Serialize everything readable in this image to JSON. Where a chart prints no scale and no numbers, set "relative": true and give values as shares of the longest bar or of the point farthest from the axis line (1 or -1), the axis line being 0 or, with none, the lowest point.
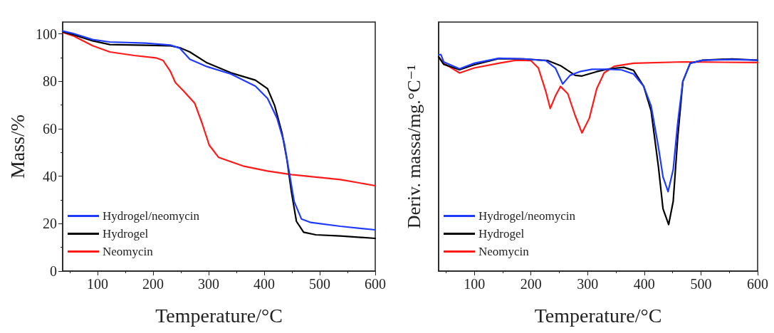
{
  "chart_data": [
    {
      "type": "line",
      "xlabel": "Temperature/°C",
      "ylabel": "Mass/%",
      "xlim": [
        37,
        600
      ],
      "xticks": [
        100,
        200,
        300,
        400,
        500,
        600
      ],
      "ylim": [
        0,
        105
      ],
      "yticks": [
        0,
        20,
        40,
        60,
        80,
        100
      ],
      "legend": "bottom left",
      "grid": false,
      "marker": "none",
      "line_style": "solid",
      "series": [
        {
          "name": "Hydrogel/neomycin",
          "color": "#1f3bff",
          "x": [
            37,
            56,
            91,
            122,
            187,
            231,
            248,
            266,
            297,
            340,
            384,
            406,
            423,
            436,
            445,
            454,
            467,
            484,
            537,
            600
          ],
          "values": [
            101.2,
            100.2,
            97.6,
            96.6,
            96.1,
            95.3,
            94,
            89.3,
            86.2,
            83.1,
            78,
            72.8,
            64.5,
            54.1,
            41.7,
            29.3,
            22,
            20.5,
            18.9,
            17.4
          ]
        },
        {
          "name": "Hydrogel",
          "color": "#000000",
          "x": [
            37,
            56,
            91,
            122,
            187,
            231,
            248,
            266,
            297,
            340,
            384,
            406,
            419,
            432,
            441,
            449,
            458,
            471,
            493,
            537,
            600
          ],
          "values": [
            100.9,
            99.7,
            97.1,
            95.5,
            95.2,
            95,
            94.2,
            92.4,
            87.8,
            83.6,
            80.5,
            76.9,
            69.7,
            58.3,
            46.9,
            33.4,
            21,
            16.4,
            15.3,
            14.8,
            13.8
          ]
        },
        {
          "name": "Neomycin",
          "color": "#ff1a1a",
          "x": [
            37,
            56,
            91,
            122,
            166,
            205,
            218,
            231,
            240,
            257,
            275,
            288,
            301,
            318,
            362,
            406,
            449,
            537,
            600
          ],
          "values": [
            100.7,
            99.2,
            95,
            92.4,
            90.9,
            89.9,
            88.8,
            84.2,
            79.5,
            75.4,
            70.7,
            62.4,
            53.1,
            47.9,
            44.3,
            42.2,
            40.7,
            38.6,
            36
          ]
        }
      ]
    },
    {
      "type": "line",
      "xlabel": "Temperature/°C",
      "ylabel": "Deriv. massa/mg.°C⁻¹",
      "relative": true,
      "xlim": [
        37,
        600
      ],
      "xticks": [
        100,
        200,
        300,
        400,
        500,
        600
      ],
      "tick_labels": "x",
      "legend": "bottom left",
      "grid": false,
      "marker": "none",
      "line_style": "solid",
      "series": [
        {
          "name": "Hydrogel/neomycin",
          "color": "#1f3bff",
          "x": [
            37,
            41,
            46,
            74,
            100,
            143,
            187,
            226,
            243,
            256,
            269,
            286,
            308,
            338,
            360,
            381,
            399,
            412,
            425,
            433,
            442,
            451,
            459,
            468,
            481,
            503,
            555,
            600
          ],
          "values": [
            0.998,
            1,
            0.966,
            0.934,
            0.96,
            0.983,
            0.98,
            0.972,
            0.938,
            0.864,
            0.904,
            0.921,
            0.932,
            0.932,
            0.929,
            0.91,
            0.853,
            0.763,
            0.571,
            0.435,
            0.367,
            0.469,
            0.684,
            0.876,
            0.96,
            0.974,
            0.977,
            0.974
          ]
        },
        {
          "name": "Hydrogel",
          "color": "#000000",
          "x": [
            37,
            46,
            74,
            100,
            143,
            187,
            230,
            252,
            278,
            290,
            316,
            338,
            364,
            381,
            399,
            412,
            425,
            433,
            443,
            451,
            459,
            468,
            481,
            503,
            555,
            600
          ],
          "values": [
            0.989,
            0.955,
            0.93,
            0.953,
            0.981,
            0.98,
            0.972,
            0.949,
            0.904,
            0.901,
            0.921,
            0.934,
            0.941,
            0.927,
            0.853,
            0.74,
            0.48,
            0.288,
            0.215,
            0.322,
            0.616,
            0.876,
            0.96,
            0.974,
            0.98,
            0.974
          ]
        },
        {
          "name": "Neomycin",
          "color": "#ff1a1a",
          "x": [
            37,
            46,
            74,
            100,
            143,
            174,
            200,
            213,
            226,
            234,
            243,
            252,
            265,
            278,
            290,
            303,
            316,
            329,
            347,
            381,
            468,
            600
          ],
          "values": [
            0.989,
            0.96,
            0.915,
            0.938,
            0.96,
            0.974,
            0.972,
            0.938,
            0.831,
            0.751,
            0.808,
            0.853,
            0.819,
            0.718,
            0.638,
            0.706,
            0.842,
            0.915,
            0.946,
            0.96,
            0.966,
            0.963
          ]
        }
      ]
    }
  ]
}
